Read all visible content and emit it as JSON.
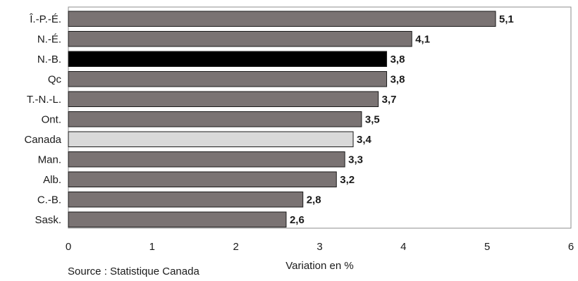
{
  "chart_data": {
    "type": "bar",
    "orientation": "horizontal",
    "categories": [
      "Î.-P.-É.",
      "N.-É.",
      "N.-B.",
      "Qc",
      "T.-N.-L.",
      "Ont.",
      "Canada",
      "Man.",
      "Alb.",
      "C.-B.",
      "Sask."
    ],
    "values": [
      5.1,
      4.1,
      3.8,
      3.8,
      3.7,
      3.5,
      3.4,
      3.3,
      3.2,
      2.8,
      2.6
    ],
    "value_labels": [
      "5,1",
      "4,1",
      "3,8",
      "3,8",
      "3,7",
      "3,5",
      "3,4",
      "3,3",
      "3,2",
      "2,8",
      "2,6"
    ],
    "xlabel": "Variation en %",
    "xlim": [
      0,
      6
    ],
    "x_ticks": [
      0,
      1,
      2,
      3,
      4,
      5,
      6
    ],
    "x_tick_labels": [
      "0",
      "1",
      "2",
      "3",
      "4",
      "5",
      "6"
    ],
    "grid": false,
    "colors": {
      "default_bar": "#7a7373",
      "highlight_bar": "#000000",
      "canada_bar": "#d9d9d9",
      "bar_outline": "#1a1a1a",
      "frame": "#8c8c8c"
    },
    "highlight": "N.-B.",
    "reference": "Canada"
  },
  "source_text": "Source : Statistique Canada"
}
